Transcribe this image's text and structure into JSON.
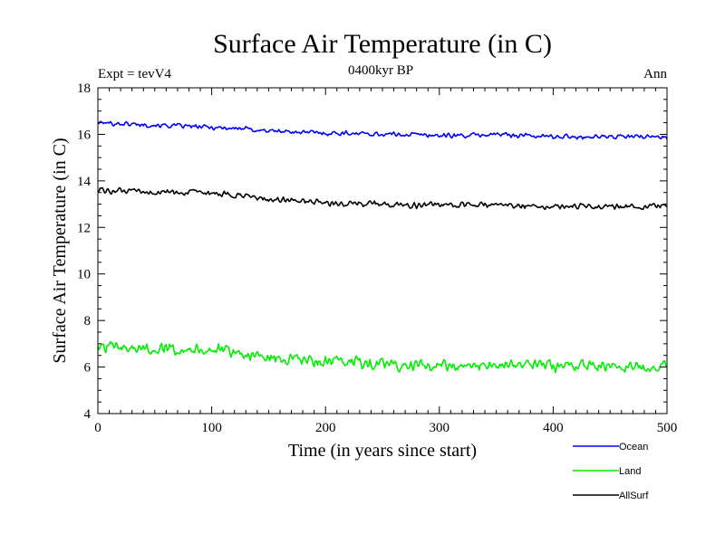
{
  "chart_data": {
    "type": "line",
    "title": "Surface Air Temperature (in C)",
    "subtitle": "0400kyr BP",
    "left_annotation": "Expt = tevV4",
    "right_annotation": "Ann",
    "xlabel": "Time (in years since start)",
    "ylabel": "Surface Air Temperature (in C)",
    "xlim": [
      0,
      500
    ],
    "ylim": [
      4,
      18
    ],
    "x_ticks": [
      0,
      100,
      200,
      300,
      400,
      500
    ],
    "y_ticks": [
      4,
      6,
      8,
      10,
      12,
      14,
      16,
      18
    ],
    "x_tick_labels": [
      "0",
      "100",
      "200",
      "300",
      "400",
      "500"
    ],
    "y_tick_labels": [
      "4",
      "6",
      "8",
      "10",
      "12",
      "14",
      "16",
      "18"
    ],
    "grid": false,
    "legend_position": "bottom-right outside",
    "x_sampled": [
      0,
      25,
      50,
      75,
      100,
      125,
      150,
      175,
      200,
      225,
      250,
      275,
      300,
      325,
      350,
      375,
      400,
      425,
      450,
      475,
      500
    ],
    "series": [
      {
        "name": "Ocean",
        "color": "#0000ff",
        "values": [
          16.5,
          16.45,
          16.4,
          16.35,
          16.3,
          16.25,
          16.15,
          16.1,
          16.05,
          16.05,
          16.0,
          16.0,
          15.95,
          15.95,
          16.0,
          15.95,
          15.9,
          15.9,
          15.9,
          15.9,
          15.9
        ],
        "noise": 0.12
      },
      {
        "name": "Land",
        "color": "#00ee00",
        "values": [
          6.85,
          6.8,
          6.8,
          6.8,
          6.75,
          6.6,
          6.4,
          6.3,
          6.2,
          6.2,
          6.1,
          6.05,
          6.05,
          6.05,
          6.1,
          6.1,
          6.05,
          6.05,
          6.05,
          6.0,
          6.05
        ],
        "noise": 0.3
      },
      {
        "name": "AllSurf",
        "color": "#000000",
        "values": [
          13.6,
          13.55,
          13.5,
          13.5,
          13.45,
          13.35,
          13.2,
          13.15,
          13.05,
          13.05,
          13.0,
          12.95,
          12.95,
          12.95,
          13.0,
          12.95,
          12.9,
          12.9,
          12.9,
          12.9,
          12.9
        ],
        "noise": 0.15
      }
    ]
  }
}
